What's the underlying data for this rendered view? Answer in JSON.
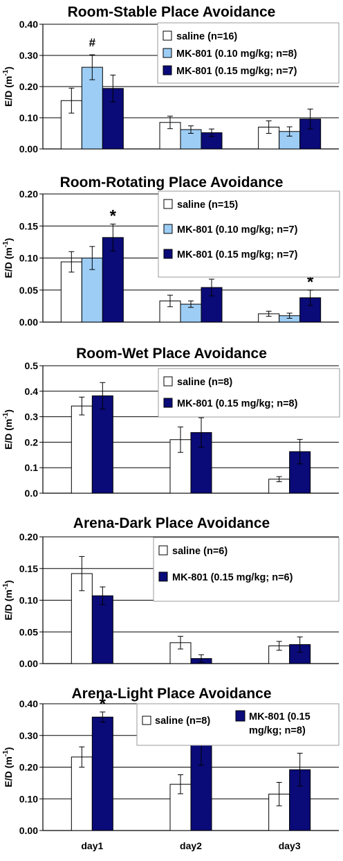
{
  "colors": {
    "saline": "#ffffff",
    "mk_low": "#9dcdf5",
    "mk_high": "#0a0a78",
    "stroke": "#000000",
    "grid": "#000000",
    "legend_border": "#999999"
  },
  "chart_data": [
    {
      "type": "bar",
      "title": "Room-Stable Place Avoidance",
      "ylabel": "E/D (m",
      "ylabel_sup": "-1",
      "ylabel_close": ")",
      "ylim": [
        0,
        0.4
      ],
      "yticks": [
        0.0,
        0.1,
        0.2,
        0.3,
        0.4
      ],
      "ytick_labels": [
        "0.00",
        "0.10",
        "0.20",
        "0.30",
        "0.40"
      ],
      "categories": [
        "day1",
        "day2",
        "day3"
      ],
      "show_x_labels": false,
      "legend_position": "top-right",
      "series": [
        {
          "name": "saline (n=16)",
          "color_key": "saline",
          "values": [
            0.155,
            0.085,
            0.07
          ],
          "errors": [
            0.04,
            0.02,
            0.02
          ]
        },
        {
          "name": "MK-801 (0.10 mg/kg; n=8)",
          "color_key": "mk_low",
          "values": [
            0.262,
            0.062,
            0.056
          ],
          "errors": [
            0.04,
            0.012,
            0.015
          ]
        },
        {
          "name": "MK-801 (0.15 mg/kg; n=7)",
          "color_key": "mk_high",
          "values": [
            0.194,
            0.052,
            0.096
          ],
          "errors": [
            0.043,
            0.012,
            0.032
          ]
        }
      ],
      "annotations": [
        {
          "text": "#",
          "category": 0,
          "series": 1
        }
      ]
    },
    {
      "type": "bar",
      "title": "Room-Rotating Place Avoidance",
      "ylabel": "E/D (m",
      "ylabel_sup": "-1",
      "ylabel_close": ")",
      "ylim": [
        0,
        0.2
      ],
      "yticks": [
        0.0,
        0.05,
        0.1,
        0.15,
        0.2
      ],
      "ytick_labels": [
        "0.00",
        "0.05",
        "0.10",
        "0.15",
        "0.20"
      ],
      "categories": [
        "day1",
        "day2",
        "day3"
      ],
      "show_x_labels": false,
      "legend_position": "top-right",
      "series": [
        {
          "name": "saline (n=15)",
          "color_key": "saline",
          "values": [
            0.094,
            0.033,
            0.013
          ],
          "errors": [
            0.016,
            0.009,
            0.004
          ]
        },
        {
          "name": "MK-801 (0.10 mg/kg; n=7)",
          "color_key": "mk_low",
          "values": [
            0.1,
            0.028,
            0.01
          ],
          "errors": [
            0.018,
            0.005,
            0.004
          ]
        },
        {
          "name": "MK-801 (0.15 mg/kg; n=7)",
          "color_key": "mk_high",
          "values": [
            0.132,
            0.054,
            0.038
          ],
          "errors": [
            0.021,
            0.013,
            0.012
          ]
        }
      ],
      "annotations": [
        {
          "text": "*",
          "category": 0,
          "series": 2
        },
        {
          "text": "*",
          "category": 1,
          "series": 2
        },
        {
          "text": "*",
          "category": 2,
          "series": 2
        }
      ]
    },
    {
      "type": "bar",
      "title": "Room-Wet Place Avoidance",
      "ylabel": "E/D (m",
      "ylabel_sup": "-1",
      "ylabel_close": ")",
      "ylim": [
        0,
        0.5
      ],
      "yticks": [
        0.0,
        0.1,
        0.2,
        0.3,
        0.4,
        0.5
      ],
      "ytick_labels": [
        "0.0",
        "0.1",
        "0.2",
        "0.3",
        "0.4",
        "0.5"
      ],
      "categories": [
        "day1",
        "day2",
        "day3"
      ],
      "show_x_labels": false,
      "legend_position": "top-right",
      "series": [
        {
          "name": "saline (n=8)",
          "color_key": "saline",
          "values": [
            0.342,
            0.21,
            0.055
          ],
          "errors": [
            0.035,
            0.05,
            0.01
          ]
        },
        {
          "name": "MK-801 (0.15 mg/kg; n=8)",
          "color_key": "mk_high",
          "values": [
            0.382,
            0.238,
            0.163
          ],
          "errors": [
            0.052,
            0.058,
            0.048
          ]
        }
      ],
      "annotations": []
    },
    {
      "type": "bar",
      "title": "Arena-Dark Place Avoidance",
      "ylabel": "E/D (m",
      "ylabel_sup": "-1",
      "ylabel_close": ")",
      "ylim": [
        0,
        0.2
      ],
      "yticks": [
        0.0,
        0.05,
        0.1,
        0.15,
        0.2
      ],
      "ytick_labels": [
        "0.00",
        "0.05",
        "0.10",
        "0.15",
        "0.20"
      ],
      "categories": [
        "day1",
        "day2",
        "day3"
      ],
      "show_x_labels": false,
      "legend_position": "top-right",
      "series": [
        {
          "name": "saline (n=6)",
          "color_key": "saline",
          "values": [
            0.142,
            0.033,
            0.028
          ],
          "errors": [
            0.027,
            0.01,
            0.007
          ]
        },
        {
          "name": "MK-801 (0.15 mg/kg; n=6)",
          "color_key": "mk_high",
          "values": [
            0.107,
            0.008,
            0.03
          ],
          "errors": [
            0.014,
            0.006,
            0.012
          ]
        }
      ],
      "annotations": []
    },
    {
      "type": "bar",
      "title": "Arena-Light Place Avoidance",
      "ylabel": "E/D (m",
      "ylabel_sup": "-1",
      "ylabel_close": ")",
      "ylim": [
        0,
        0.4
      ],
      "yticks": [
        0.0,
        0.1,
        0.2,
        0.3,
        0.4
      ],
      "ytick_labels": [
        "0.00",
        "0.10",
        "0.20",
        "0.30",
        "0.40"
      ],
      "categories": [
        "day1",
        "day2",
        "day3"
      ],
      "show_x_labels": true,
      "legend_position": "top",
      "series": [
        {
          "name": "saline (n=8)",
          "color_key": "saline",
          "values": [
            0.232,
            0.146,
            0.115
          ],
          "errors": [
            0.032,
            0.03,
            0.037
          ]
        },
        {
          "name": "MK-801 (0.15 mg/kg; n=8)",
          "name_lines": [
            "MK-801 (0.15",
            "mg/kg; n=8)"
          ],
          "color_key": "mk_high",
          "values": [
            0.358,
            0.274,
            0.192
          ],
          "errors": [
            0.016,
            0.068,
            0.052
          ]
        }
      ],
      "annotations": [
        {
          "text": "*",
          "category": 0,
          "series": 1
        },
        {
          "text": "*",
          "category": 1,
          "series": 1
        },
        {
          "text": "*",
          "category": 2,
          "series": 1
        }
      ]
    }
  ]
}
